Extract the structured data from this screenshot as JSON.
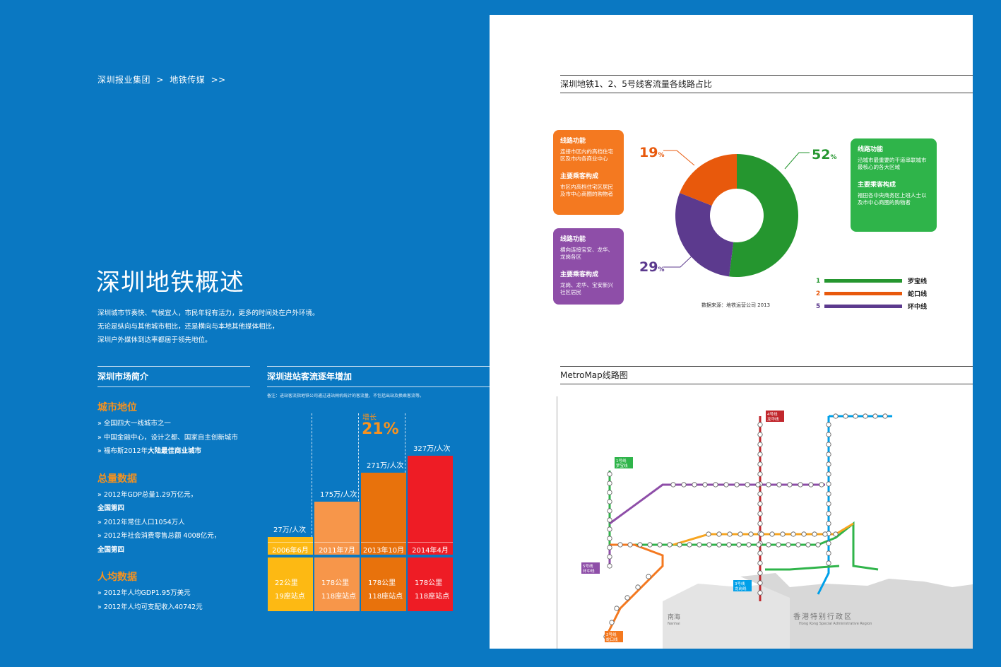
{
  "breadcrumb": {
    "group": "深圳报业集团",
    "sep": ">",
    "current": "地铁传媒",
    "more": ">>"
  },
  "title": "深圳地铁概述",
  "intro": [
    "深圳城市节奏快、气候宜人，市民年轻有活力，更多的时间处在户外环境。",
    "无论是纵向与其他城市相比，还是横向与本地其他媒体相比，",
    "深圳户外媒体到达率都居于领先地位。"
  ],
  "market": {
    "heading": "深圳市场简介",
    "city_position": {
      "title": "城市地位",
      "items": [
        "» 全国四大一线城市之一",
        "» 中国金融中心，设计之都、国家自主创新城市"
      ],
      "item3_prefix": "» 福布斯2012年",
      "item3_bold": "大陆最佳商业城市"
    },
    "totals": {
      "title": "总量数据",
      "gdp": "» 2012年GDP总量1.29万亿元，",
      "gdp_rank": "全国第四",
      "pop": "» 2012年常住人口1054万人",
      "retail": "» 2012年社会消费零售总额 4008亿元，",
      "retail_rank": "全国第四"
    },
    "per_capita": {
      "title": "人均数据",
      "items": [
        "» 2012年人均GDP1.95万美元",
        "» 2012年人均可支配收入40742元"
      ]
    }
  },
  "traffic": {
    "heading": "深圳进站客流逐年增加",
    "note": "备注：进站客流指地铁公司通过进站闸机统计的客流量，不包括出站及换乘客流等。",
    "growth_label": "增长",
    "growth_value": "21%",
    "bars": [
      {
        "value": "27万/人次",
        "date": "2006年6月",
        "km": "22公里",
        "stations": "19座站点",
        "amount": 27,
        "color": "#fdb913"
      },
      {
        "value": "175万/人次",
        "date": "2011年7月",
        "km": "178公里",
        "stations": "118座站点",
        "amount": 175,
        "color": "#f7964a"
      },
      {
        "value": "271万/人次",
        "date": "2013年10月",
        "km": "178公里",
        "stations": "118座站点",
        "amount": 271,
        "color": "#e8720c"
      },
      {
        "value": "327万/人次",
        "date": "2014年4月",
        "km": "178公里",
        "stations": "118座站点",
        "amount": 327,
        "color": "#ee1c25"
      }
    ]
  },
  "share": {
    "heading": "深圳地铁1、2、5号线客流量各线路占比",
    "source": "数据来源：地铁运营公司 2013",
    "pct_unit": "%",
    "boxes": [
      {
        "func_title": "线路功能",
        "func": "连接市区内的高档住宅区及市内各商业中心",
        "rider_title": "主要乘客构成",
        "rider": "市区内高档住宅区居民及市中心商圈的购物者",
        "color": "#f47920"
      },
      {
        "func_title": "线路功能",
        "func": "横向连接宝安、龙华、龙岗各区",
        "rider_title": "主要乘客构成",
        "rider": "龙岗、龙华、宝安新兴社区居民",
        "color": "#8e4ea8"
      },
      {
        "func_title": "线路功能",
        "func": "沿城市最重要的干道串联城市最核心的各大区域",
        "rider_title": "主要乘客构成",
        "rider": "福田各中央商务区上班人士以及市中心商圈的购物者",
        "color": "#2fb44a"
      }
    ],
    "chart_data": {
      "type": "pie",
      "title": "深圳地铁1、2、5号线客流量各线路占比",
      "categories": [
        "罗宝线",
        "蛇口线",
        "环中线"
      ],
      "values": [
        52,
        19,
        29
      ],
      "labels": [
        "52",
        "19",
        "29"
      ],
      "colors": [
        "#25962f",
        "#e8590c",
        "#5c3a8e"
      ],
      "donut": true
    },
    "legend": [
      {
        "num": "1",
        "name": "罗宝线",
        "color": "#25962f"
      },
      {
        "num": "2",
        "name": "蛇口线",
        "color": "#e8590c"
      },
      {
        "num": "5",
        "name": "环中线",
        "color": "#5c3a8e"
      }
    ]
  },
  "metro": {
    "heading": "MetroMap线路图",
    "hk_cn": "香港特别行政区",
    "hk_en": "Hong Kong Special Administrative Region",
    "nanhai_cn": "南海",
    "nanhai_en": "Nanhai",
    "tags": [
      "4号线 龙华线",
      "3号线 龙岗线",
      "1号线 罗宝线",
      "5号线 环中线",
      "2号线 蛇口线"
    ]
  }
}
